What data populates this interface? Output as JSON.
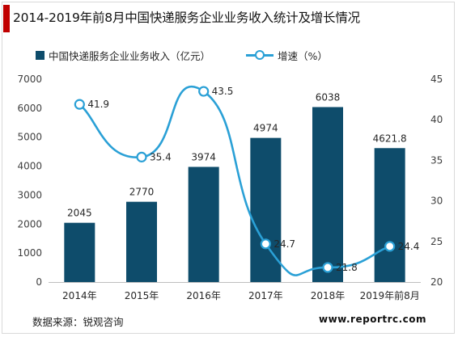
{
  "colors": {
    "bar": "#0e4c6b",
    "line": "#2aa0d6",
    "accent_bar": "#c00000"
  },
  "header": {
    "title": "2014-2019年前8月中国快递服务企业业务收入统计及增长情况"
  },
  "legend": {
    "bar_label": "中国快递服务企业业务收入（亿元）",
    "line_label": "增速（%）"
  },
  "footer": {
    "source": "数据来源：锐观咨询",
    "watermark": "www.reportrc.com"
  },
  "chart_data": {
    "type": "bar",
    "categories": [
      "2014年",
      "2015年",
      "2016年",
      "2017年",
      "2018年",
      "2019年前8月"
    ],
    "series": [
      {
        "name": "中国快递服务企业业务收入（亿元）",
        "type": "bar",
        "axis": "left",
        "values": [
          2045,
          2770,
          3974,
          4974,
          6038,
          4621.8
        ],
        "labels": [
          "2045",
          "2770",
          "3974",
          "4974",
          "6038",
          "4621.8"
        ]
      },
      {
        "name": "增速（%）",
        "type": "line",
        "smooth": true,
        "axis": "right",
        "values": [
          41.9,
          35.4,
          43.5,
          24.7,
          21.8,
          24.4
        ],
        "labels": [
          "41.9",
          "35.4",
          "43.5",
          "24.7",
          "21.8",
          "24.4"
        ]
      }
    ],
    "y_left": {
      "range": [
        0,
        7000
      ],
      "ticks": [
        0,
        1000,
        2000,
        3000,
        4000,
        5000,
        6000,
        7000
      ],
      "tick_labels": [
        "0",
        "1000",
        "2000",
        "3000",
        "4000",
        "5000",
        "6000",
        "7000"
      ]
    },
    "y_right": {
      "range": [
        20,
        45
      ],
      "ticks": [
        20,
        25,
        30,
        35,
        40,
        45
      ],
      "tick_labels": [
        "20",
        "25",
        "30",
        "35",
        "40",
        "45"
      ]
    },
    "grid": false,
    "legend_position": "top"
  }
}
